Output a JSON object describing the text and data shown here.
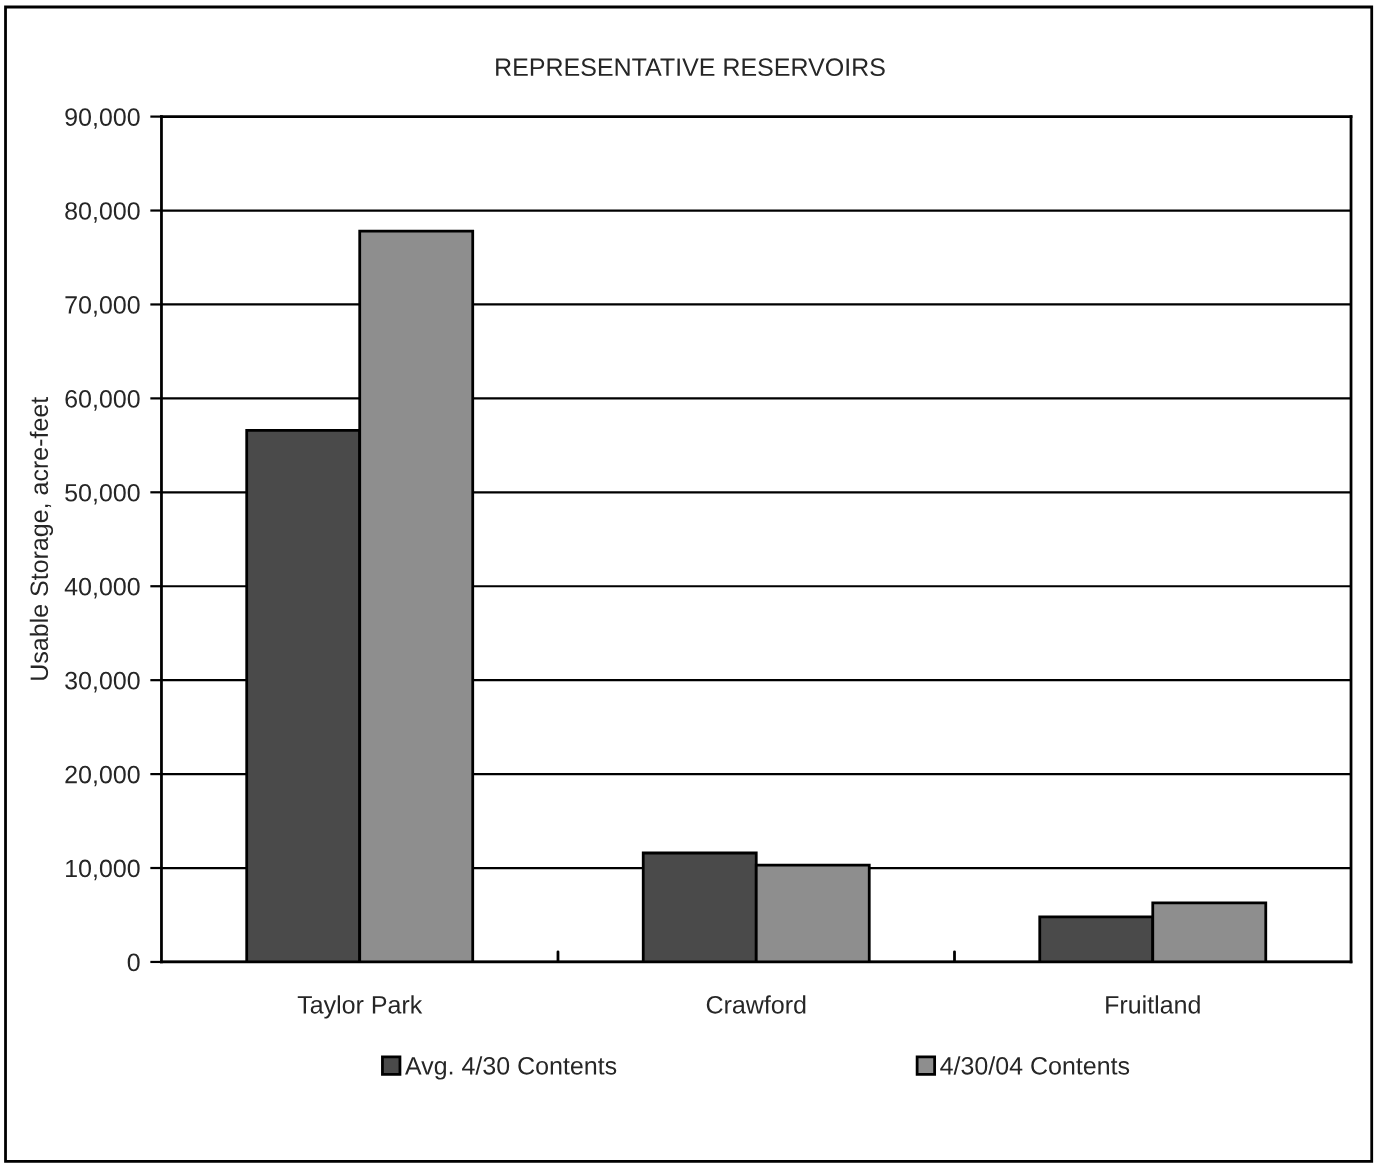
{
  "chart_data": {
    "type": "bar",
    "title": "REPRESENTATIVE RESERVOIRS",
    "ylabel": "Usable Storage, acre-feet",
    "categories": [
      "Taylor Park",
      "Crawford",
      "Fruitland"
    ],
    "series": [
      {
        "name": "Avg. 4/30 Contents",
        "color": "#4a4a4a",
        "values": [
          56600,
          11600,
          4800
        ]
      },
      {
        "name": "4/30/04 Contents",
        "color": "#8e8e8e",
        "values": [
          77800,
          10300,
          6300
        ]
      }
    ],
    "ylim": [
      0,
      90000
    ],
    "yticks": [
      {
        "value": 0,
        "label": "0"
      },
      {
        "value": 10000,
        "label": "10,000"
      },
      {
        "value": 20000,
        "label": "20,000"
      },
      {
        "value": 30000,
        "label": "30,000"
      },
      {
        "value": 40000,
        "label": "40,000"
      },
      {
        "value": 50000,
        "label": "50,000"
      },
      {
        "value": 60000,
        "label": "60,000"
      },
      {
        "value": 70000,
        "label": "70,000"
      },
      {
        "value": 80000,
        "label": "80,000"
      },
      {
        "value": 90000,
        "label": "90,000"
      }
    ],
    "grid": "y",
    "legend": "bottom"
  }
}
